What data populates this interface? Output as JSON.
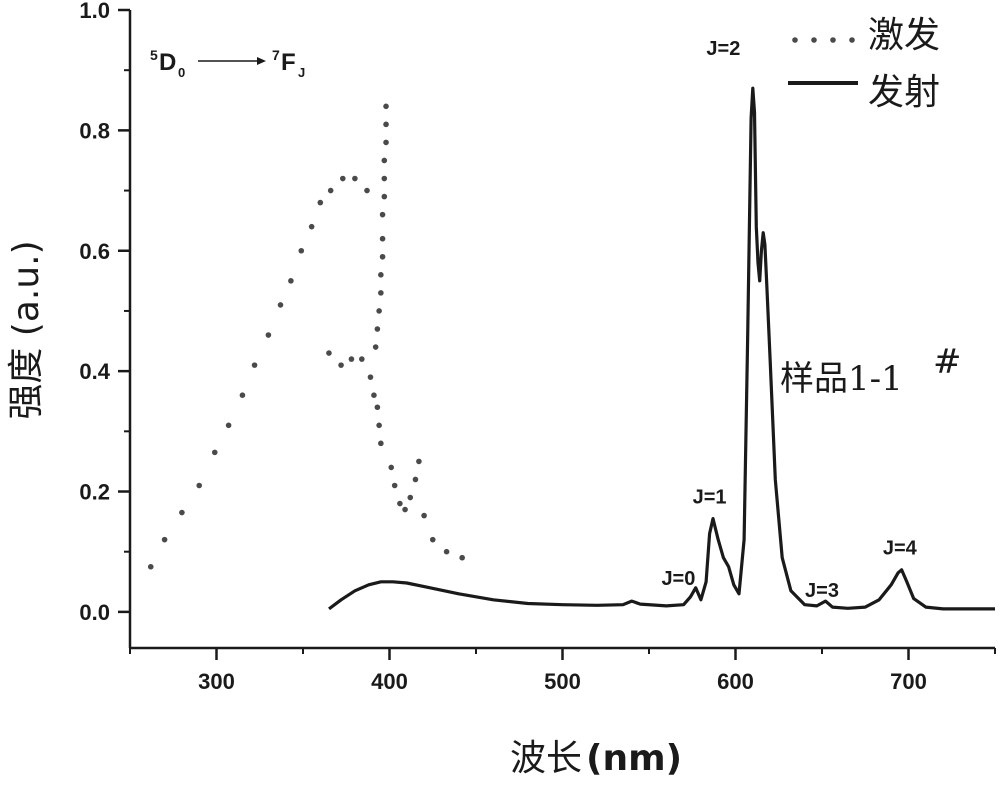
{
  "chart_data": {
    "type": "line",
    "xlabel_text": "波长",
    "xlabel_unit": "(nm)",
    "ylabel": "强度 (a.u.)",
    "xlim": [
      250,
      750
    ],
    "ylim": [
      -0.06,
      1.0
    ],
    "x_ticks": [
      300,
      400,
      500,
      600,
      700
    ],
    "y_ticks": [
      0.0,
      0.2,
      0.4,
      0.6,
      0.8,
      1.0
    ],
    "y_tick_labels": [
      "0.0",
      "0.2",
      "0.4",
      "0.6",
      "0.8",
      "1.0"
    ],
    "legend_position": "top-right",
    "colors": {
      "axis": "#1a1a1a",
      "series": "#333333"
    },
    "transition": {
      "from_sup": "5",
      "from_main": "D",
      "from_sub": "0",
      "to_sup": "7",
      "to_main": "F",
      "to_sub": "J"
    },
    "sample_label": {
      "main": "样品1-1",
      "sup": "#"
    },
    "annotations": [
      {
        "text": "J=0",
        "x": 567,
        "y": 0.045
      },
      {
        "text": "J=1",
        "x": 585,
        "y": 0.18
      },
      {
        "text": "J=2",
        "x": 593,
        "y": 0.925
      },
      {
        "text": "J=3",
        "x": 650,
        "y": 0.025
      },
      {
        "text": "J=4",
        "x": 695,
        "y": 0.095
      }
    ],
    "series": [
      {
        "name": "激发",
        "style": "dotted",
        "points": [
          [
            262,
            0.075
          ],
          [
            270,
            0.12
          ],
          [
            280,
            0.165
          ],
          [
            290,
            0.21
          ],
          [
            299,
            0.265
          ],
          [
            307,
            0.31
          ],
          [
            315,
            0.36
          ],
          [
            322,
            0.41
          ],
          [
            330,
            0.46
          ],
          [
            337,
            0.51
          ],
          [
            343,
            0.55
          ],
          [
            349,
            0.6
          ],
          [
            355,
            0.64
          ],
          [
            360,
            0.68
          ],
          [
            366,
            0.7
          ],
          [
            373,
            0.72
          ],
          [
            380,
            0.72
          ],
          [
            387,
            0.7
          ],
          [
            365,
            0.43
          ],
          [
            372,
            0.41
          ],
          [
            378,
            0.42
          ],
          [
            384,
            0.42
          ],
          [
            389,
            0.39
          ],
          [
            391,
            0.36
          ],
          [
            393,
            0.34
          ],
          [
            394,
            0.31
          ],
          [
            395,
            0.28
          ],
          [
            392,
            0.44
          ],
          [
            393,
            0.47
          ],
          [
            394,
            0.5
          ],
          [
            395,
            0.53
          ],
          [
            395,
            0.56
          ],
          [
            396,
            0.59
          ],
          [
            396,
            0.62
          ],
          [
            396,
            0.66
          ],
          [
            397,
            0.69
          ],
          [
            397,
            0.72
          ],
          [
            397,
            0.75
          ],
          [
            398,
            0.78
          ],
          [
            398,
            0.81
          ],
          [
            398,
            0.84
          ],
          [
            401,
            0.24
          ],
          [
            403,
            0.21
          ],
          [
            406,
            0.18
          ],
          [
            409,
            0.17
          ],
          [
            412,
            0.19
          ],
          [
            415,
            0.22
          ],
          [
            417,
            0.25
          ],
          [
            420,
            0.16
          ],
          [
            425,
            0.12
          ],
          [
            433,
            0.1
          ],
          [
            442,
            0.09
          ]
        ]
      },
      {
        "name": "发射",
        "style": "solid",
        "points": [
          [
            365,
            0.005
          ],
          [
            372,
            0.02
          ],
          [
            380,
            0.035
          ],
          [
            388,
            0.045
          ],
          [
            395,
            0.05
          ],
          [
            402,
            0.05
          ],
          [
            410,
            0.048
          ],
          [
            420,
            0.042
          ],
          [
            440,
            0.03
          ],
          [
            460,
            0.02
          ],
          [
            480,
            0.014
          ],
          [
            500,
            0.012
          ],
          [
            520,
            0.011
          ],
          [
            535,
            0.012
          ],
          [
            540,
            0.018
          ],
          [
            545,
            0.013
          ],
          [
            560,
            0.01
          ],
          [
            570,
            0.012
          ],
          [
            574,
            0.025
          ],
          [
            577,
            0.04
          ],
          [
            580,
            0.02
          ],
          [
            583,
            0.05
          ],
          [
            585,
            0.13
          ],
          [
            587,
            0.155
          ],
          [
            590,
            0.12
          ],
          [
            593,
            0.09
          ],
          [
            596,
            0.075
          ],
          [
            599,
            0.045
          ],
          [
            602,
            0.03
          ],
          [
            605,
            0.12
          ],
          [
            607,
            0.45
          ],
          [
            609,
            0.82
          ],
          [
            610,
            0.87
          ],
          [
            611,
            0.83
          ],
          [
            612,
            0.64
          ],
          [
            613,
            0.58
          ],
          [
            614,
            0.55
          ],
          [
            615,
            0.6
          ],
          [
            616,
            0.63
          ],
          [
            617,
            0.61
          ],
          [
            618,
            0.55
          ],
          [
            620,
            0.42
          ],
          [
            623,
            0.22
          ],
          [
            627,
            0.09
          ],
          [
            632,
            0.035
          ],
          [
            640,
            0.012
          ],
          [
            647,
            0.01
          ],
          [
            652,
            0.018
          ],
          [
            656,
            0.008
          ],
          [
            665,
            0.006
          ],
          [
            675,
            0.008
          ],
          [
            683,
            0.02
          ],
          [
            690,
            0.045
          ],
          [
            694,
            0.065
          ],
          [
            696,
            0.07
          ],
          [
            699,
            0.05
          ],
          [
            703,
            0.022
          ],
          [
            710,
            0.008
          ],
          [
            720,
            0.005
          ],
          [
            735,
            0.005
          ],
          [
            750,
            0.005
          ]
        ]
      }
    ]
  }
}
